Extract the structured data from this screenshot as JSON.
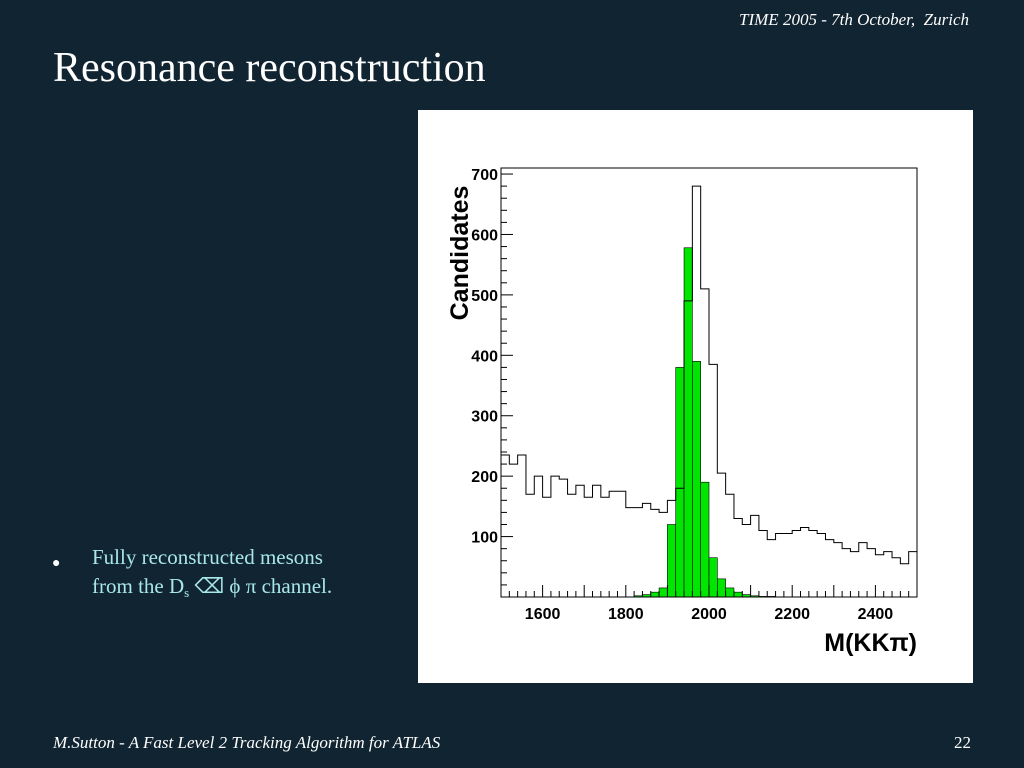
{
  "header": {
    "text": "TIME 2005 - 7th October,  Zurich"
  },
  "title": "Resonance reconstruction",
  "bullet": {
    "line1": "Fully reconstructed mesons",
    "line2_pre": "from the D",
    "subscript": "s",
    "line2_post": " ⌫ ϕ π channel."
  },
  "footer": {
    "left": "M.Sutton - A Fast Level 2 Tracking Algorithm for ATLAS",
    "page_number": "22"
  },
  "colors": {
    "background": "#112431",
    "signal_fill": "#00e600",
    "bullet_text": "#a8e8e8"
  },
  "chart_data": {
    "type": "histogram",
    "xlabel": "M(KKπ)",
    "ylabel": "Candidates",
    "xlim": [
      1500,
      2500
    ],
    "ylim": [
      0,
      710
    ],
    "xticks": [
      1600,
      1800,
      2000,
      2200,
      2400
    ],
    "yticks": [
      100,
      200,
      300,
      400,
      500,
      600,
      700
    ],
    "bin_width": 20,
    "grid": false,
    "series": [
      {
        "style": "outline",
        "color": "#000000",
        "bins": [
          {
            "x": 1500,
            "y": 235
          },
          {
            "x": 1520,
            "y": 220
          },
          {
            "x": 1540,
            "y": 235
          },
          {
            "x": 1560,
            "y": 170
          },
          {
            "x": 1580,
            "y": 200
          },
          {
            "x": 1600,
            "y": 165
          },
          {
            "x": 1620,
            "y": 200
          },
          {
            "x": 1640,
            "y": 195
          },
          {
            "x": 1660,
            "y": 170
          },
          {
            "x": 1680,
            "y": 185
          },
          {
            "x": 1700,
            "y": 165
          },
          {
            "x": 1720,
            "y": 185
          },
          {
            "x": 1740,
            "y": 165
          },
          {
            "x": 1760,
            "y": 175
          },
          {
            "x": 1780,
            "y": 175
          },
          {
            "x": 1800,
            "y": 148
          },
          {
            "x": 1820,
            "y": 148
          },
          {
            "x": 1840,
            "y": 155
          },
          {
            "x": 1860,
            "y": 145
          },
          {
            "x": 1880,
            "y": 140
          },
          {
            "x": 1900,
            "y": 160
          },
          {
            "x": 1920,
            "y": 180
          },
          {
            "x": 1940,
            "y": 490
          },
          {
            "x": 1960,
            "y": 680
          },
          {
            "x": 1980,
            "y": 510
          },
          {
            "x": 2000,
            "y": 385
          },
          {
            "x": 2020,
            "y": 205
          },
          {
            "x": 2040,
            "y": 170
          },
          {
            "x": 2060,
            "y": 130
          },
          {
            "x": 2080,
            "y": 120
          },
          {
            "x": 2100,
            "y": 135
          },
          {
            "x": 2120,
            "y": 110
          },
          {
            "x": 2140,
            "y": 95
          },
          {
            "x": 2160,
            "y": 105
          },
          {
            "x": 2180,
            "y": 105
          },
          {
            "x": 2200,
            "y": 110
          },
          {
            "x": 2220,
            "y": 115
          },
          {
            "x": 2240,
            "y": 110
          },
          {
            "x": 2260,
            "y": 105
          },
          {
            "x": 2280,
            "y": 95
          },
          {
            "x": 2300,
            "y": 90
          },
          {
            "x": 2320,
            "y": 80
          },
          {
            "x": 2340,
            "y": 75
          },
          {
            "x": 2360,
            "y": 90
          },
          {
            "x": 2380,
            "y": 80
          },
          {
            "x": 2400,
            "y": 70
          },
          {
            "x": 2420,
            "y": 75
          },
          {
            "x": 2440,
            "y": 65
          },
          {
            "x": 2460,
            "y": 55
          },
          {
            "x": 2480,
            "y": 75
          }
        ]
      },
      {
        "style": "filled",
        "color": "#00e600",
        "bins": [
          {
            "x": 1500,
            "y": 0
          },
          {
            "x": 1520,
            "y": 0
          },
          {
            "x": 1540,
            "y": 0
          },
          {
            "x": 1560,
            "y": 0
          },
          {
            "x": 1580,
            "y": 0
          },
          {
            "x": 1600,
            "y": 0
          },
          {
            "x": 1620,
            "y": 0
          },
          {
            "x": 1640,
            "y": 0
          },
          {
            "x": 1660,
            "y": 0
          },
          {
            "x": 1680,
            "y": 0
          },
          {
            "x": 1700,
            "y": 0
          },
          {
            "x": 1720,
            "y": 0
          },
          {
            "x": 1740,
            "y": 0
          },
          {
            "x": 1760,
            "y": 0
          },
          {
            "x": 1780,
            "y": 0
          },
          {
            "x": 1800,
            "y": 0
          },
          {
            "x": 1820,
            "y": 2
          },
          {
            "x": 1840,
            "y": 4
          },
          {
            "x": 1860,
            "y": 8
          },
          {
            "x": 1880,
            "y": 15
          },
          {
            "x": 1900,
            "y": 120
          },
          {
            "x": 1920,
            "y": 380
          },
          {
            "x": 1940,
            "y": 578
          },
          {
            "x": 1960,
            "y": 390
          },
          {
            "x": 1980,
            "y": 190
          },
          {
            "x": 2000,
            "y": 65
          },
          {
            "x": 2020,
            "y": 30
          },
          {
            "x": 2040,
            "y": 15
          },
          {
            "x": 2060,
            "y": 8
          },
          {
            "x": 2080,
            "y": 4
          },
          {
            "x": 2100,
            "y": 2
          },
          {
            "x": 2120,
            "y": 1
          },
          {
            "x": 2140,
            "y": 1
          },
          {
            "x": 2160,
            "y": 0
          },
          {
            "x": 2180,
            "y": 0
          },
          {
            "x": 2200,
            "y": 0
          },
          {
            "x": 2220,
            "y": 0
          },
          {
            "x": 2240,
            "y": 0
          },
          {
            "x": 2260,
            "y": 0
          },
          {
            "x": 2280,
            "y": 0
          },
          {
            "x": 2300,
            "y": 0
          },
          {
            "x": 2320,
            "y": 0
          },
          {
            "x": 2340,
            "y": 0
          },
          {
            "x": 2360,
            "y": 0
          },
          {
            "x": 2380,
            "y": 0
          },
          {
            "x": 2400,
            "y": 0
          },
          {
            "x": 2420,
            "y": 0
          },
          {
            "x": 2440,
            "y": 0
          },
          {
            "x": 2460,
            "y": 0
          },
          {
            "x": 2480,
            "y": 0
          }
        ]
      }
    ]
  }
}
